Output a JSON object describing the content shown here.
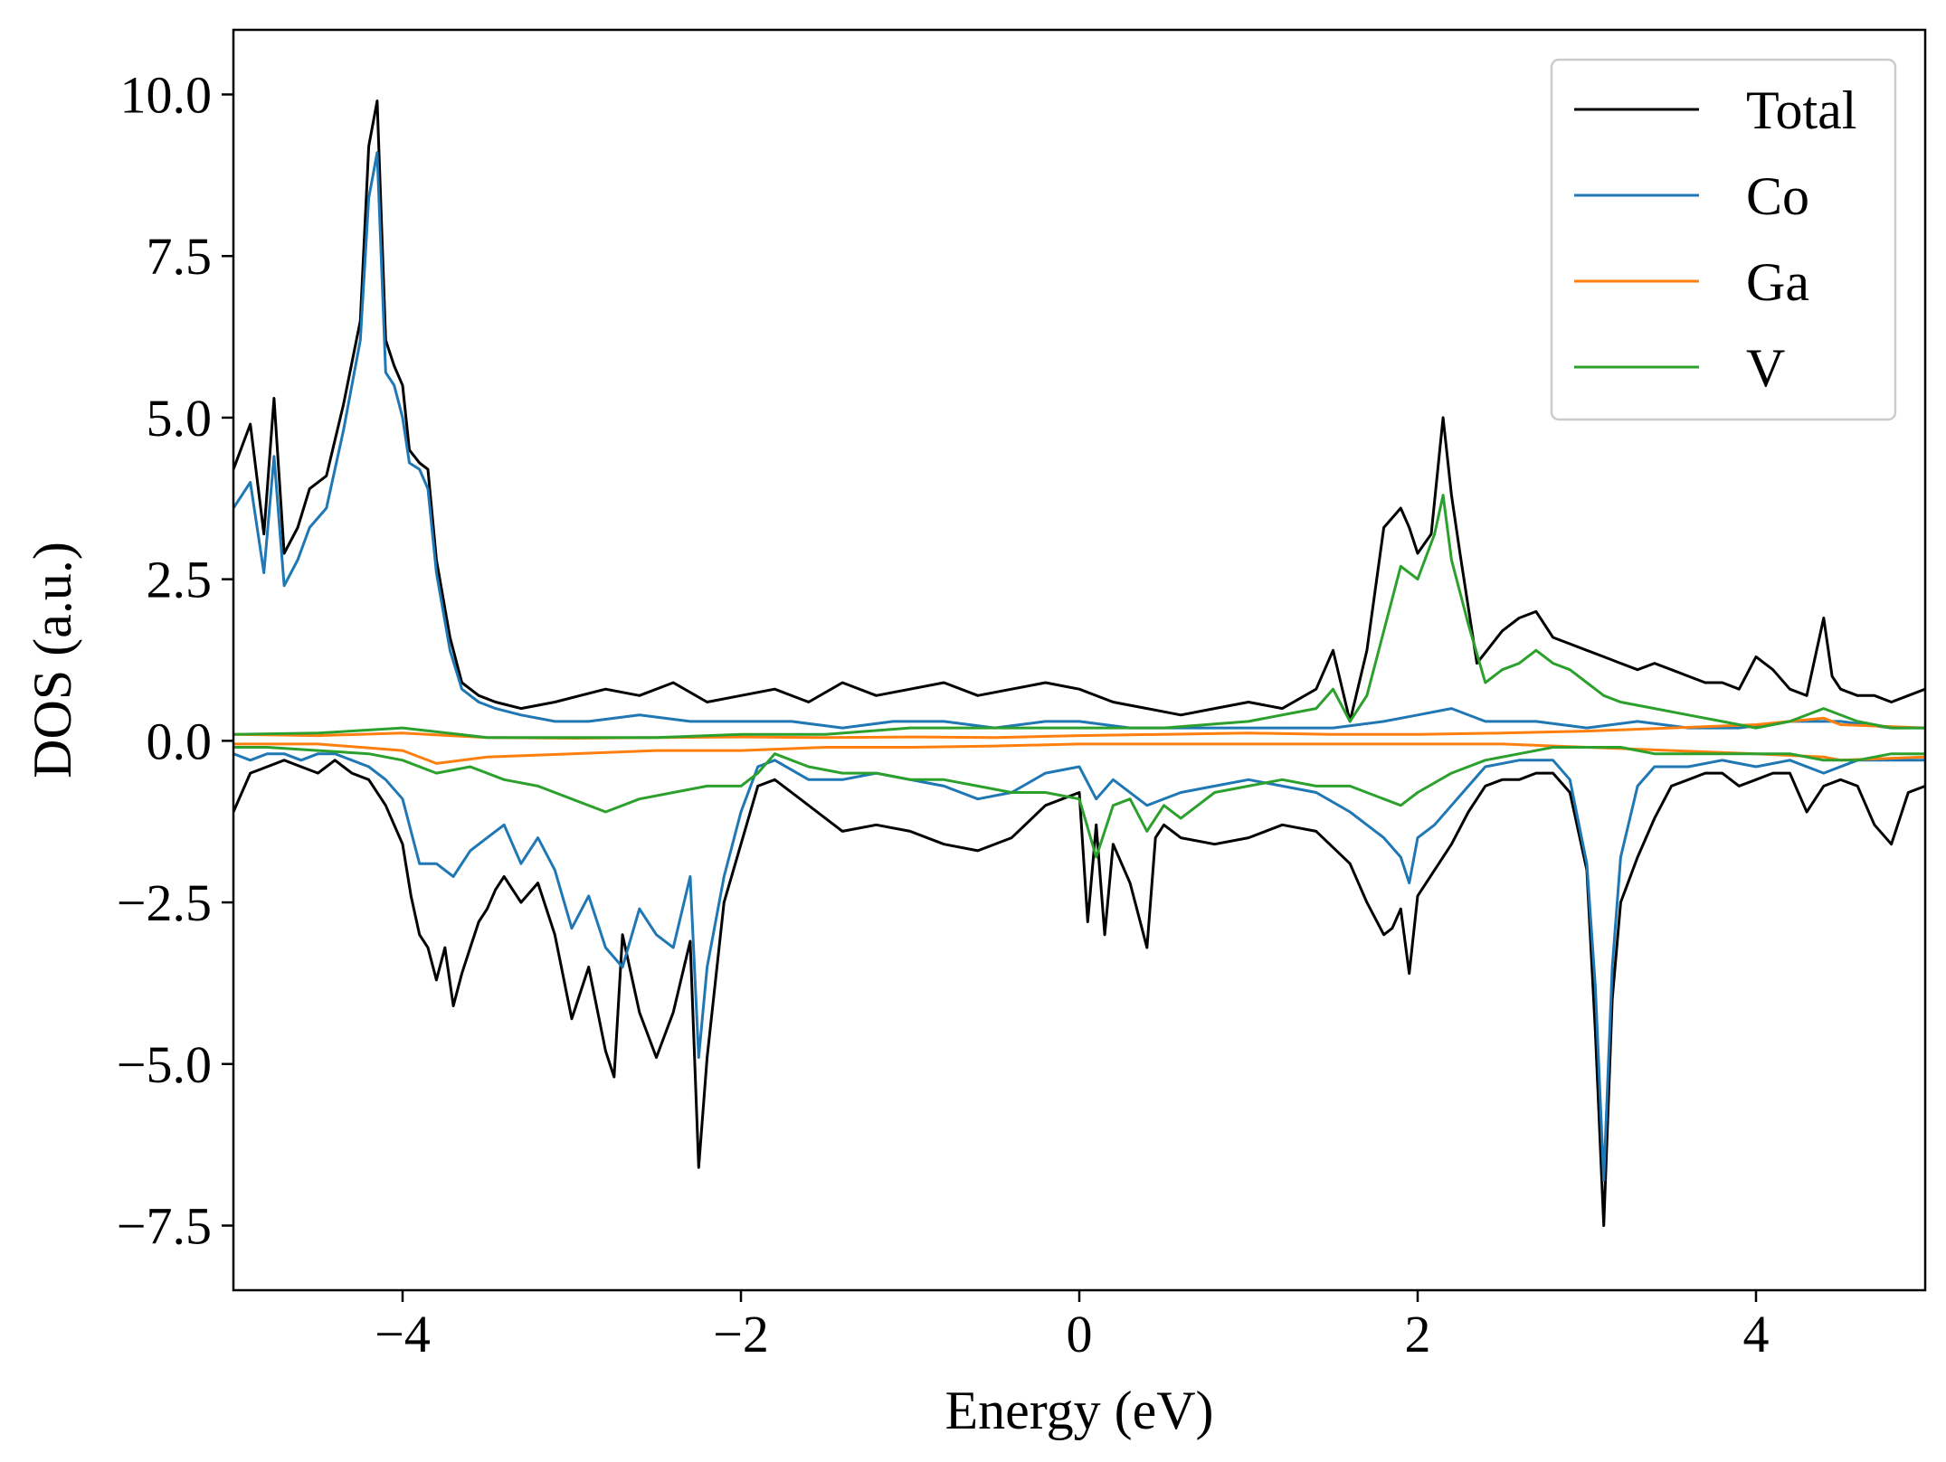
{
  "chart_data": {
    "type": "line",
    "title": "",
    "xlabel": "Energy (eV)",
    "ylabel": "DOS (a.u.)",
    "xlim": [
      -5,
      5
    ],
    "ylim": [
      -8.5,
      11
    ],
    "xticks": [
      -4,
      -2,
      0,
      2,
      4
    ],
    "xtick_labels": [
      "−4",
      "−2",
      "0",
      "2",
      "4"
    ],
    "yticks": [
      10,
      7.5,
      5,
      2.5,
      0,
      -2.5,
      -5,
      -7.5
    ],
    "ytick_labels": [
      "10.0",
      "7.5",
      "5.0",
      "2.5",
      "0.0",
      "−2.5",
      "−5.0",
      "−7.5"
    ],
    "grid": false,
    "legend": {
      "position": "top-right",
      "items": [
        "Total",
        "Co",
        "Ga",
        "V"
      ]
    },
    "series": [
      {
        "name": "Total",
        "color": "#000000",
        "up": {
          "x": [
            -5.0,
            -4.9,
            -4.82,
            -4.76,
            -4.7,
            -4.62,
            -4.55,
            -4.45,
            -4.35,
            -4.25,
            -4.2,
            -4.15,
            -4.1,
            -4.05,
            -4.0,
            -3.96,
            -3.9,
            -3.85,
            -3.8,
            -3.72,
            -3.65,
            -3.55,
            -3.45,
            -3.3,
            -3.1,
            -2.95,
            -2.8,
            -2.6,
            -2.4,
            -2.2,
            -2.0,
            -1.8,
            -1.6,
            -1.4,
            -1.2,
            -1.0,
            -0.8,
            -0.6,
            -0.4,
            -0.2,
            0.0,
            0.2,
            0.4,
            0.6,
            0.8,
            1.0,
            1.2,
            1.4,
            1.5,
            1.6,
            1.7,
            1.8,
            1.9,
            1.95,
            2.0,
            2.08,
            2.15,
            2.2,
            2.25,
            2.35,
            2.5,
            2.6,
            2.7,
            2.8,
            2.9,
            3.0,
            3.1,
            3.2,
            3.3,
            3.4,
            3.5,
            3.6,
            3.7,
            3.8,
            3.9,
            4.0,
            4.1,
            4.2,
            4.3,
            4.4,
            4.45,
            4.5,
            4.6,
            4.7,
            4.8,
            4.9,
            5.0
          ],
          "y": [
            4.2,
            4.9,
            3.2,
            5.3,
            2.9,
            3.3,
            3.9,
            4.1,
            5.2,
            6.5,
            9.2,
            9.9,
            6.2,
            5.8,
            5.5,
            4.5,
            4.3,
            4.2,
            2.8,
            1.6,
            0.9,
            0.7,
            0.6,
            0.5,
            0.6,
            0.7,
            0.8,
            0.7,
            0.9,
            0.6,
            0.7,
            0.8,
            0.6,
            0.9,
            0.7,
            0.8,
            0.9,
            0.7,
            0.8,
            0.9,
            0.8,
            0.6,
            0.5,
            0.4,
            0.5,
            0.6,
            0.5,
            0.8,
            1.4,
            0.3,
            1.4,
            3.3,
            3.6,
            3.3,
            2.9,
            3.2,
            5.0,
            3.8,
            2.9,
            1.2,
            1.7,
            1.9,
            2.0,
            1.6,
            1.5,
            1.4,
            1.3,
            1.2,
            1.1,
            1.2,
            1.1,
            1.0,
            0.9,
            0.9,
            0.8,
            1.3,
            1.1,
            0.8,
            0.7,
            1.9,
            1.0,
            0.8,
            0.7,
            0.7,
            0.6,
            0.7,
            0.8
          ]
        },
        "down": {
          "x": [
            -5.0,
            -4.9,
            -4.8,
            -4.7,
            -4.6,
            -4.5,
            -4.4,
            -4.3,
            -4.2,
            -4.1,
            -4.0,
            -3.95,
            -3.9,
            -3.85,
            -3.8,
            -3.75,
            -3.7,
            -3.65,
            -3.6,
            -3.55,
            -3.5,
            -3.45,
            -3.4,
            -3.3,
            -3.2,
            -3.1,
            -3.0,
            -2.9,
            -2.8,
            -2.75,
            -2.7,
            -2.6,
            -2.5,
            -2.4,
            -2.3,
            -2.25,
            -2.2,
            -2.1,
            -2.0,
            -1.9,
            -1.8,
            -1.6,
            -1.4,
            -1.2,
            -1.0,
            -0.8,
            -0.6,
            -0.4,
            -0.2,
            0.0,
            0.05,
            0.1,
            0.15,
            0.2,
            0.3,
            0.4,
            0.45,
            0.5,
            0.6,
            0.8,
            1.0,
            1.2,
            1.4,
            1.6,
            1.7,
            1.8,
            1.85,
            1.9,
            1.95,
            2.0,
            2.1,
            2.2,
            2.3,
            2.4,
            2.5,
            2.6,
            2.7,
            2.8,
            2.9,
            3.0,
            3.05,
            3.1,
            3.15,
            3.2,
            3.3,
            3.4,
            3.5,
            3.6,
            3.7,
            3.8,
            3.9,
            4.0,
            4.1,
            4.2,
            4.3,
            4.4,
            4.5,
            4.6,
            4.7,
            4.8,
            4.9,
            5.0
          ],
          "y": [
            -1.1,
            -0.5,
            -0.4,
            -0.3,
            -0.4,
            -0.5,
            -0.3,
            -0.5,
            -0.6,
            -1.0,
            -1.6,
            -2.4,
            -3.0,
            -3.2,
            -3.7,
            -3.2,
            -4.1,
            -3.6,
            -3.2,
            -2.8,
            -2.6,
            -2.3,
            -2.1,
            -2.5,
            -2.2,
            -3.0,
            -4.3,
            -3.5,
            -4.8,
            -5.2,
            -3.0,
            -4.2,
            -4.9,
            -4.2,
            -3.1,
            -6.6,
            -4.9,
            -2.5,
            -1.6,
            -0.7,
            -0.6,
            -1.0,
            -1.4,
            -1.3,
            -1.4,
            -1.6,
            -1.7,
            -1.5,
            -1.0,
            -0.8,
            -2.8,
            -1.3,
            -3.0,
            -1.6,
            -2.2,
            -3.2,
            -1.5,
            -1.3,
            -1.5,
            -1.6,
            -1.5,
            -1.3,
            -1.4,
            -1.9,
            -2.5,
            -3.0,
            -2.9,
            -2.6,
            -3.6,
            -2.4,
            -2.0,
            -1.6,
            -1.1,
            -0.7,
            -0.6,
            -0.6,
            -0.5,
            -0.5,
            -0.8,
            -2.0,
            -4.5,
            -7.5,
            -4.0,
            -2.5,
            -1.8,
            -1.2,
            -0.7,
            -0.6,
            -0.5,
            -0.5,
            -0.7,
            -0.6,
            -0.5,
            -0.5,
            -1.1,
            -0.7,
            -0.6,
            -0.7,
            -1.3,
            -1.6,
            -0.8,
            -0.7
          ]
        }
      },
      {
        "name": "Co",
        "color": "#1f77b4",
        "up": {
          "x": [
            -5.0,
            -4.9,
            -4.82,
            -4.76,
            -4.7,
            -4.62,
            -4.55,
            -4.45,
            -4.35,
            -4.25,
            -4.2,
            -4.15,
            -4.1,
            -4.05,
            -4.0,
            -3.96,
            -3.9,
            -3.85,
            -3.8,
            -3.72,
            -3.65,
            -3.55,
            -3.45,
            -3.3,
            -3.1,
            -2.9,
            -2.6,
            -2.3,
            -2.0,
            -1.7,
            -1.4,
            -1.1,
            -0.8,
            -0.5,
            -0.2,
            0.0,
            0.3,
            0.6,
            0.9,
            1.2,
            1.5,
            1.8,
            2.0,
            2.2,
            2.4,
            2.7,
            3.0,
            3.3,
            3.6,
            3.9,
            4.2,
            4.5,
            4.8,
            5.0
          ],
          "y": [
            3.6,
            4.0,
            2.6,
            4.4,
            2.4,
            2.8,
            3.3,
            3.6,
            4.8,
            6.2,
            8.4,
            9.1,
            5.7,
            5.5,
            5.0,
            4.3,
            4.2,
            3.9,
            2.6,
            1.4,
            0.8,
            0.6,
            0.5,
            0.4,
            0.3,
            0.3,
            0.4,
            0.3,
            0.3,
            0.3,
            0.2,
            0.3,
            0.3,
            0.2,
            0.3,
            0.3,
            0.2,
            0.2,
            0.2,
            0.2,
            0.2,
            0.3,
            0.4,
            0.5,
            0.3,
            0.3,
            0.2,
            0.3,
            0.2,
            0.2,
            0.3,
            0.3,
            0.2,
            0.2
          ]
        },
        "down": {
          "x": [
            -5.0,
            -4.9,
            -4.8,
            -4.7,
            -4.6,
            -4.5,
            -4.4,
            -4.3,
            -4.2,
            -4.1,
            -4.0,
            -3.95,
            -3.9,
            -3.8,
            -3.7,
            -3.6,
            -3.5,
            -3.4,
            -3.3,
            -3.2,
            -3.1,
            -3.0,
            -2.9,
            -2.8,
            -2.7,
            -2.6,
            -2.5,
            -2.4,
            -2.3,
            -2.25,
            -2.2,
            -2.1,
            -2.0,
            -1.9,
            -1.8,
            -1.6,
            -1.4,
            -1.2,
            -1.0,
            -0.8,
            -0.6,
            -0.4,
            -0.2,
            0.0,
            0.1,
            0.2,
            0.4,
            0.6,
            0.8,
            1.0,
            1.2,
            1.4,
            1.6,
            1.8,
            1.9,
            1.95,
            2.0,
            2.1,
            2.2,
            2.3,
            2.4,
            2.6,
            2.8,
            2.9,
            3.0,
            3.05,
            3.1,
            3.15,
            3.2,
            3.3,
            3.4,
            3.6,
            3.8,
            4.0,
            4.2,
            4.4,
            4.6,
            4.8,
            5.0
          ],
          "y": [
            -0.2,
            -0.3,
            -0.2,
            -0.2,
            -0.3,
            -0.2,
            -0.2,
            -0.3,
            -0.4,
            -0.6,
            -0.9,
            -1.4,
            -1.9,
            -1.9,
            -2.1,
            -1.7,
            -1.5,
            -1.3,
            -1.9,
            -1.5,
            -2.0,
            -2.9,
            -2.4,
            -3.2,
            -3.5,
            -2.6,
            -3.0,
            -3.2,
            -2.1,
            -4.9,
            -3.5,
            -2.1,
            -1.1,
            -0.4,
            -0.3,
            -0.6,
            -0.6,
            -0.5,
            -0.6,
            -0.7,
            -0.9,
            -0.8,
            -0.5,
            -0.4,
            -0.9,
            -0.6,
            -1.0,
            -0.8,
            -0.7,
            -0.6,
            -0.7,
            -0.8,
            -1.1,
            -1.5,
            -1.8,
            -2.2,
            -1.5,
            -1.3,
            -1.0,
            -0.7,
            -0.4,
            -0.3,
            -0.3,
            -0.6,
            -1.9,
            -3.8,
            -6.8,
            -3.5,
            -1.8,
            -0.7,
            -0.4,
            -0.4,
            -0.3,
            -0.4,
            -0.3,
            -0.5,
            -0.3,
            -0.3,
            -0.3
          ]
        }
      },
      {
        "name": "Ga",
        "color": "#ff7f0e",
        "up": {
          "x": [
            -5.0,
            -4.5,
            -4.0,
            -3.5,
            -3.0,
            -2.5,
            -2.0,
            -1.5,
            -1.0,
            -0.5,
            0.0,
            0.5,
            1.0,
            1.5,
            2.0,
            2.5,
            3.0,
            3.5,
            4.0,
            4.4,
            4.5,
            5.0
          ],
          "y": [
            0.1,
            0.08,
            0.12,
            0.05,
            0.04,
            0.05,
            0.06,
            0.05,
            0.06,
            0.05,
            0.08,
            0.1,
            0.12,
            0.1,
            0.1,
            0.12,
            0.15,
            0.2,
            0.25,
            0.35,
            0.25,
            0.2
          ]
        },
        "down": {
          "x": [
            -5.0,
            -4.5,
            -4.0,
            -3.8,
            -3.5,
            -3.0,
            -2.5,
            -2.0,
            -1.5,
            -1.0,
            -0.5,
            0.0,
            0.5,
            1.0,
            1.5,
            2.0,
            2.5,
            3.0,
            3.5,
            4.0,
            4.4,
            4.5,
            5.0
          ],
          "y": [
            -0.05,
            -0.05,
            -0.15,
            -0.35,
            -0.25,
            -0.2,
            -0.15,
            -0.15,
            -0.1,
            -0.1,
            -0.08,
            -0.05,
            -0.05,
            -0.05,
            -0.05,
            -0.05,
            -0.05,
            -0.1,
            -0.15,
            -0.2,
            -0.25,
            -0.3,
            -0.25
          ]
        }
      },
      {
        "name": "V",
        "color": "#2ca02c",
        "up": {
          "x": [
            -5.0,
            -4.5,
            -4.0,
            -3.5,
            -3.0,
            -2.5,
            -2.0,
            -1.5,
            -1.0,
            -0.5,
            0.0,
            0.5,
            1.0,
            1.4,
            1.5,
            1.6,
            1.7,
            1.8,
            1.9,
            2.0,
            2.1,
            2.15,
            2.2,
            2.3,
            2.4,
            2.5,
            2.6,
            2.7,
            2.8,
            2.9,
            3.0,
            3.1,
            3.2,
            3.4,
            3.6,
            3.8,
            4.0,
            4.2,
            4.4,
            4.6,
            4.8,
            5.0
          ],
          "y": [
            0.1,
            0.12,
            0.2,
            0.05,
            0.05,
            0.05,
            0.1,
            0.1,
            0.2,
            0.2,
            0.2,
            0.2,
            0.3,
            0.5,
            0.8,
            0.3,
            0.7,
            1.7,
            2.7,
            2.5,
            3.2,
            3.8,
            2.8,
            1.8,
            0.9,
            1.1,
            1.2,
            1.4,
            1.2,
            1.1,
            0.9,
            0.7,
            0.6,
            0.5,
            0.4,
            0.3,
            0.2,
            0.3,
            0.5,
            0.3,
            0.2,
            0.2
          ]
        },
        "down": {
          "x": [
            -5.0,
            -4.8,
            -4.5,
            -4.2,
            -4.0,
            -3.8,
            -3.6,
            -3.4,
            -3.2,
            -3.0,
            -2.8,
            -2.6,
            -2.4,
            -2.2,
            -2.0,
            -1.9,
            -1.8,
            -1.6,
            -1.4,
            -1.2,
            -1.0,
            -0.8,
            -0.6,
            -0.4,
            -0.2,
            0.0,
            0.1,
            0.2,
            0.3,
            0.4,
            0.5,
            0.6,
            0.8,
            1.0,
            1.2,
            1.4,
            1.6,
            1.8,
            1.9,
            2.0,
            2.2,
            2.4,
            2.6,
            2.8,
            3.0,
            3.2,
            3.4,
            3.6,
            3.8,
            4.0,
            4.2,
            4.4,
            4.6,
            4.8,
            5.0
          ],
          "y": [
            -0.1,
            -0.1,
            -0.15,
            -0.2,
            -0.3,
            -0.5,
            -0.4,
            -0.6,
            -0.7,
            -0.9,
            -1.1,
            -0.9,
            -0.8,
            -0.7,
            -0.7,
            -0.5,
            -0.2,
            -0.4,
            -0.5,
            -0.5,
            -0.6,
            -0.6,
            -0.7,
            -0.8,
            -0.8,
            -0.9,
            -1.8,
            -1.0,
            -0.9,
            -1.4,
            -1.0,
            -1.2,
            -0.8,
            -0.7,
            -0.6,
            -0.7,
            -0.7,
            -0.9,
            -1.0,
            -0.8,
            -0.5,
            -0.3,
            -0.2,
            -0.1,
            -0.1,
            -0.1,
            -0.2,
            -0.2,
            -0.2,
            -0.2,
            -0.2,
            -0.3,
            -0.3,
            -0.2,
            -0.2
          ]
        }
      }
    ]
  }
}
